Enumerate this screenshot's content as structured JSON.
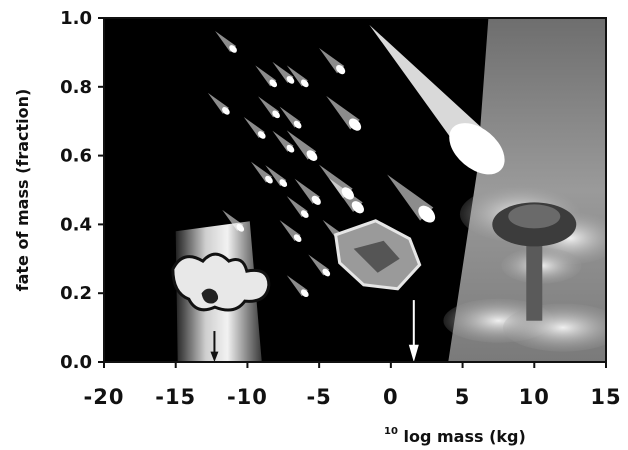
{
  "chart_data": {
    "type": "area",
    "xlabel_superscript": "10",
    "xlabel": "log mass (kg)",
    "ylabel": "fate of mass (fraction)",
    "xlim": [
      -20,
      15
    ],
    "ylim": [
      0.0,
      1.0
    ],
    "x_ticks": [
      "-20",
      "-15",
      "-10",
      "-5",
      "0",
      "5",
      "10",
      "15"
    ],
    "y_ticks": [
      "0.0",
      "0.2",
      "0.4",
      "0.6",
      "0.8",
      "1.0"
    ],
    "grid": false,
    "regions": [
      {
        "label": "",
        "x": [
          -15,
          -9
        ],
        "y_top": [
          0.38,
          0.38
        ],
        "fill": "gradient-gray"
      },
      {
        "label": "",
        "x": [
          -20,
          5.5
        ],
        "y_top": [
          1.0,
          1.0
        ],
        "fill": "black"
      },
      {
        "label": "",
        "x": [
          4,
          15
        ],
        "y_top": [
          0.0,
          1.0
        ],
        "fill": "gray"
      }
    ],
    "boundary_line": {
      "x": [
        4,
        6,
        6.8,
        15
      ],
      "y": [
        0.0,
        0.55,
        1.0,
        1.0
      ]
    },
    "colors": {
      "background": "#000000",
      "impact_region": "#8a8a8a",
      "meteor": "#ffffff"
    }
  }
}
